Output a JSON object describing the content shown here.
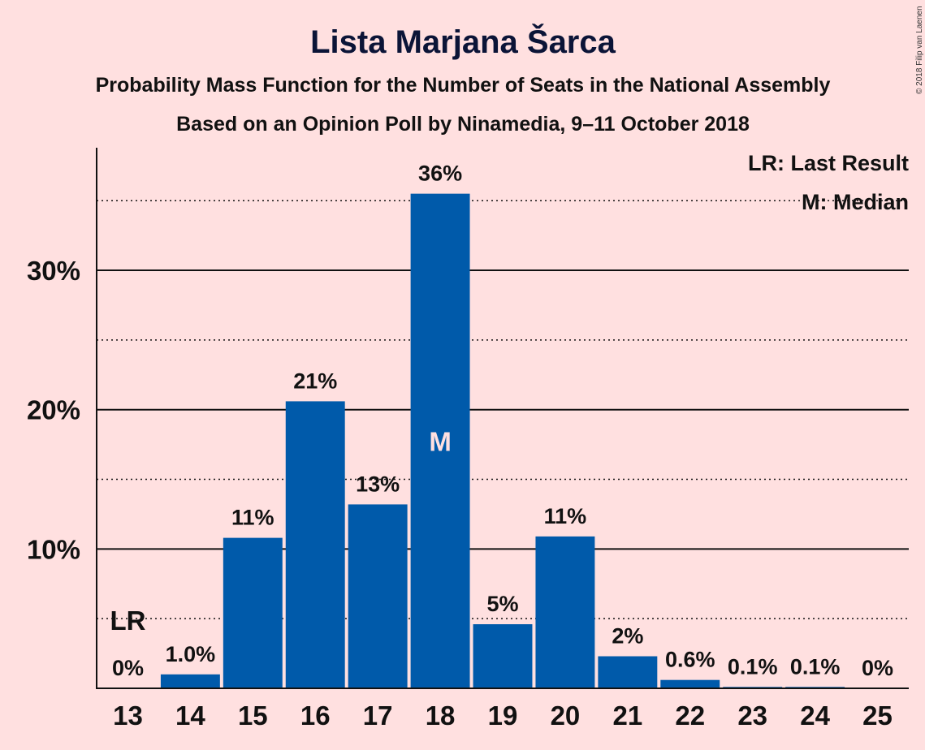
{
  "chart_data": {
    "type": "bar",
    "title": "Lista Marjana Šarca",
    "subtitle": "Probability Mass Function for the Number of Seats in the National Assembly",
    "subtitle2": "Based on an Opinion Poll by Ninamedia, 9–11 October 2018",
    "copyright": "© 2018 Filip van Laenen",
    "categories": [
      "13",
      "14",
      "15",
      "16",
      "17",
      "18",
      "19",
      "20",
      "21",
      "22",
      "23",
      "24",
      "25"
    ],
    "values": [
      0,
      1.0,
      10.8,
      20.6,
      13.2,
      35.5,
      4.6,
      10.9,
      2.3,
      0.6,
      0.1,
      0.1,
      0
    ],
    "value_labels": [
      "0%",
      "1.0%",
      "11%",
      "21%",
      "13%",
      "36%",
      "5%",
      "11%",
      "2%",
      "0.6%",
      "0.1%",
      "0.1%",
      "0%"
    ],
    "ylim": [
      0,
      38.8
    ],
    "yticks": [
      10,
      20,
      30
    ],
    "ytick_labels": [
      "10%",
      "20%",
      "30%"
    ],
    "minor_gridlines": [
      5,
      15,
      25,
      35
    ],
    "last_result_category": "13",
    "last_result_label": "LR",
    "median_category": "18",
    "median_label": "M",
    "legend": [
      "LR: Last Result",
      "M: Median"
    ],
    "legend_position": "top-right",
    "colors": {
      "bar": "#005aaa",
      "background": "#ffe0e0",
      "median_text": "#ffe0e0"
    }
  }
}
